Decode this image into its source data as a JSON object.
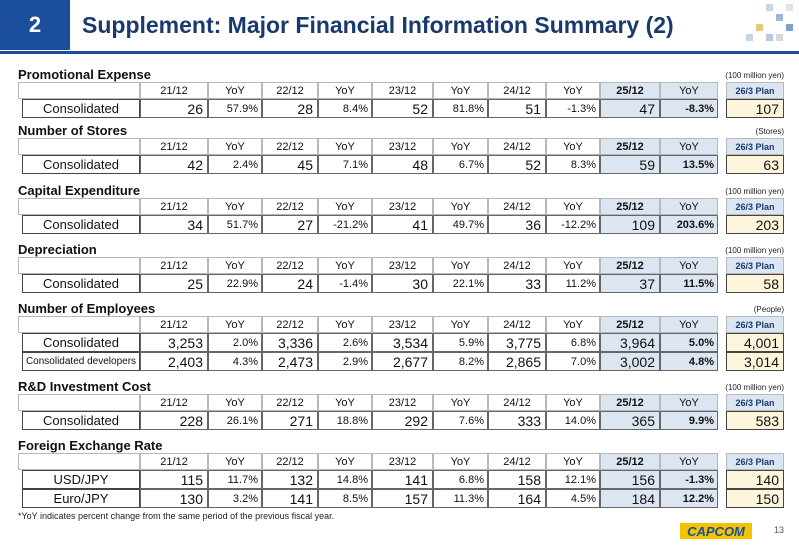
{
  "header": {
    "number": "2",
    "title": "Supplement: Major Financial Information Summary (2)"
  },
  "sections": [
    {
      "title": "Promotional Expense",
      "unit": "(100 million yen)",
      "columns": [
        "21/12",
        "YoY",
        "22/12",
        "YoY",
        "23/12",
        "YoY",
        "24/12",
        "YoY",
        "25/12",
        "YoY"
      ],
      "plan_header": "26/3 Plan",
      "rows": [
        {
          "label": "Consolidated",
          "cells": [
            "26",
            "57.9%",
            "28",
            "8.4%",
            "52",
            "81.8%",
            "51",
            "-1.3%",
            "47",
            "-8.3%"
          ],
          "plan": "107"
        }
      ]
    },
    {
      "title": "Number of Stores",
      "unit": "(Stores)",
      "columns": [
        "21/12",
        "YoY",
        "22/12",
        "YoY",
        "23/12",
        "YoY",
        "24/12",
        "YoY",
        "25/12",
        "YoY"
      ],
      "plan_header": "26/3 Plan",
      "rows": [
        {
          "label": "Consolidated",
          "cells": [
            "42",
            "2.4%",
            "45",
            "7.1%",
            "48",
            "6.7%",
            "52",
            "8.3%",
            "59",
            "13.5%"
          ],
          "plan": "63"
        }
      ]
    },
    {
      "title": "Capital Expenditure",
      "unit": "(100 million yen)",
      "columns": [
        "21/12",
        "YoY",
        "22/12",
        "YoY",
        "23/12",
        "YoY",
        "24/12",
        "YoY",
        "25/12",
        "YoY"
      ],
      "plan_header": "26/3 Plan",
      "rows": [
        {
          "label": "Consolidated",
          "cells": [
            "34",
            "51.7%",
            "27",
            "-21.2%",
            "41",
            "49.7%",
            "36",
            "-12.2%",
            "109",
            "203.6%"
          ],
          "plan": "203"
        }
      ]
    },
    {
      "title": "Depreciation",
      "unit": "(100 million yen)",
      "columns": [
        "21/12",
        "YoY",
        "22/12",
        "YoY",
        "23/12",
        "YoY",
        "24/12",
        "YoY",
        "25/12",
        "YoY"
      ],
      "plan_header": "26/3 Plan",
      "rows": [
        {
          "label": "Consolidated",
          "cells": [
            "25",
            "22.9%",
            "24",
            "-1.4%",
            "30",
            "22.1%",
            "33",
            "11.2%",
            "37",
            "11.5%"
          ],
          "plan": "58"
        }
      ]
    },
    {
      "title": "Number of Employees",
      "unit": "(People)",
      "columns": [
        "21/12",
        "YoY",
        "22/12",
        "YoY",
        "23/12",
        "YoY",
        "24/12",
        "YoY",
        "25/12",
        "YoY"
      ],
      "plan_header": "26/3 Plan",
      "rows": [
        {
          "label": "Consolidated",
          "cells": [
            "3,253",
            "2.0%",
            "3,336",
            "2.6%",
            "3,534",
            "5.9%",
            "3,775",
            "6.8%",
            "3,964",
            "5.0%"
          ],
          "plan": "4,001"
        },
        {
          "label": "Consolidated developers",
          "cells": [
            "2,403",
            "4.3%",
            "2,473",
            "2.9%",
            "2,677",
            "8.2%",
            "2,865",
            "7.0%",
            "3,002",
            "4.8%"
          ],
          "plan": "3,014"
        }
      ]
    },
    {
      "title": "R&D Investment Cost",
      "unit": "(100 million yen)",
      "columns": [
        "21/12",
        "YoY",
        "22/12",
        "YoY",
        "23/12",
        "YoY",
        "24/12",
        "YoY",
        "25/12",
        "YoY"
      ],
      "plan_header": "26/3 Plan",
      "rows": [
        {
          "label": "Consolidated",
          "cells": [
            "228",
            "26.1%",
            "271",
            "18.8%",
            "292",
            "7.6%",
            "333",
            "14.0%",
            "365",
            "9.9%"
          ],
          "plan": "583"
        }
      ]
    },
    {
      "title": "Foreign Exchange Rate",
      "columns": [
        "21/12",
        "YoY",
        "22/12",
        "YoY",
        "23/12",
        "YoY",
        "24/12",
        "YoY",
        "25/12",
        "YoY"
      ],
      "plan_header": "26/3 Plan",
      "rows": [
        {
          "label": "USD/JPY",
          "cells": [
            "115",
            "11.7%",
            "132",
            "14.8%",
            "141",
            "6.8%",
            "158",
            "12.1%",
            "156",
            "-1.3%"
          ],
          "plan": "140"
        },
        {
          "label": "Euro/JPY",
          "cells": [
            "130",
            "3.2%",
            "141",
            "8.5%",
            "157",
            "11.3%",
            "164",
            "4.5%",
            "184",
            "12.2%"
          ],
          "plan": "150"
        }
      ]
    }
  ],
  "footnote": "*YoY indicates percent change from the same period of the previous fiscal year.",
  "footer": {
    "logo": "CAPCOM",
    "page": "13"
  }
}
